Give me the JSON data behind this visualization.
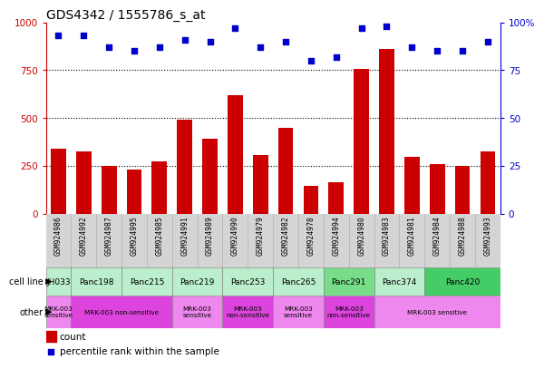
{
  "title": "GDS4342 / 1555786_s_at",
  "samples": [
    "GSM924986",
    "GSM924992",
    "GSM924987",
    "GSM924995",
    "GSM924985",
    "GSM924991",
    "GSM924989",
    "GSM924990",
    "GSM924979",
    "GSM924982",
    "GSM924978",
    "GSM924994",
    "GSM924980",
    "GSM924983",
    "GSM924981",
    "GSM924984",
    "GSM924988",
    "GSM924993"
  ],
  "counts": [
    340,
    325,
    250,
    230,
    275,
    490,
    390,
    620,
    305,
    450,
    145,
    165,
    755,
    860,
    295,
    260,
    250,
    325
  ],
  "percentiles": [
    93,
    93,
    87,
    85,
    87,
    91,
    90,
    97,
    87,
    90,
    80,
    82,
    97,
    98,
    87,
    85,
    85,
    90
  ],
  "cell_lines": [
    {
      "name": "JH033",
      "start": 0,
      "end": 1,
      "color": "#bbeecc"
    },
    {
      "name": "Panc198",
      "start": 1,
      "end": 3,
      "color": "#bbeecc"
    },
    {
      "name": "Panc215",
      "start": 3,
      "end": 5,
      "color": "#bbeecc"
    },
    {
      "name": "Panc219",
      "start": 5,
      "end": 7,
      "color": "#bbeecc"
    },
    {
      "name": "Panc253",
      "start": 7,
      "end": 9,
      "color": "#bbeecc"
    },
    {
      "name": "Panc265",
      "start": 9,
      "end": 11,
      "color": "#bbeecc"
    },
    {
      "name": "Panc291",
      "start": 11,
      "end": 13,
      "color": "#77dd88"
    },
    {
      "name": "Panc374",
      "start": 13,
      "end": 15,
      "color": "#bbeecc"
    },
    {
      "name": "Panc420",
      "start": 15,
      "end": 18,
      "color": "#44cc66"
    }
  ],
  "other_annotations": [
    {
      "label": "MRK-003\nsensitive",
      "start": 0,
      "end": 1,
      "color": "#ee88ee"
    },
    {
      "label": "MRK-003 non-sensitive",
      "start": 1,
      "end": 5,
      "color": "#dd44dd"
    },
    {
      "label": "MRK-003\nsensitive",
      "start": 5,
      "end": 7,
      "color": "#ee88ee"
    },
    {
      "label": "MRK-003\nnon-sensitive",
      "start": 7,
      "end": 9,
      "color": "#dd44dd"
    },
    {
      "label": "MRK-003\nsensitive",
      "start": 9,
      "end": 11,
      "color": "#ee88ee"
    },
    {
      "label": "MRK-003\nnon-sensitive",
      "start": 11,
      "end": 13,
      "color": "#dd44dd"
    },
    {
      "label": "MRK-003 sensitive",
      "start": 13,
      "end": 18,
      "color": "#ee88ee"
    }
  ],
  "bar_color": "#cc0000",
  "dot_color": "#0000cc",
  "left_axis_color": "#cc0000",
  "right_axis_color": "#0000cc",
  "ylim_left": [
    0,
    1000
  ],
  "ylim_right": [
    0,
    100
  ],
  "yticks_left": [
    0,
    250,
    500,
    750,
    1000
  ],
  "yticks_right": [
    0,
    25,
    50,
    75,
    100
  ],
  "xtick_bg": "#d4d4d4",
  "background_color": "#ffffff"
}
